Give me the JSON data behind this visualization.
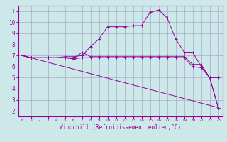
{
  "xlabel": "Windchill (Refroidissement éolien,°C)",
  "background_color": "#cce8e8",
  "grid_color": "#aaaacc",
  "line_color": "#990099",
  "x_ticks": [
    0,
    1,
    2,
    3,
    4,
    5,
    6,
    7,
    8,
    9,
    10,
    11,
    12,
    13,
    14,
    15,
    16,
    17,
    18,
    19,
    20,
    21,
    22,
    23
  ],
  "y_ticks": [
    2,
    3,
    4,
    5,
    6,
    7,
    8,
    9,
    10,
    11
  ],
  "ylim": [
    1.5,
    11.5
  ],
  "xlim": [
    -0.5,
    23.5
  ],
  "series": [
    {
      "x": [
        0,
        1,
        2,
        3,
        4,
        5,
        6,
        7,
        8,
        9,
        10,
        11,
        12,
        13,
        14,
        15,
        16,
        17,
        18,
        19,
        20,
        21,
        22,
        23
      ],
      "y": [
        7.0,
        6.8,
        6.8,
        6.8,
        6.8,
        6.8,
        6.7,
        7.3,
        6.9,
        6.9,
        6.9,
        6.9,
        6.9,
        6.9,
        6.9,
        6.9,
        6.9,
        6.9,
        6.9,
        6.9,
        6.2,
        6.2,
        5.0,
        5.0
      ],
      "marker": "+"
    },
    {
      "x": [
        0,
        1,
        2,
        3,
        4,
        5,
        6,
        7,
        8,
        9,
        10,
        11,
        12,
        13,
        14,
        15,
        16,
        17,
        18,
        19,
        20,
        21,
        22,
        23
      ],
      "y": [
        7.0,
        6.8,
        6.8,
        6.8,
        6.8,
        6.9,
        6.9,
        7.0,
        7.8,
        8.5,
        9.6,
        9.6,
        9.6,
        9.7,
        9.7,
        10.9,
        11.1,
        10.4,
        8.5,
        7.3,
        7.3,
        6.0,
        5.0,
        2.3
      ],
      "marker": "+"
    },
    {
      "x": [
        0,
        1,
        2,
        3,
        4,
        5,
        6,
        7,
        8,
        9,
        10,
        11,
        12,
        13,
        14,
        15,
        16,
        17,
        18,
        19,
        20,
        21,
        22,
        23
      ],
      "y": [
        7.0,
        6.8,
        6.8,
        6.8,
        6.8,
        6.8,
        6.7,
        6.8,
        6.8,
        6.8,
        6.8,
        6.8,
        6.8,
        6.8,
        6.8,
        6.8,
        6.8,
        6.8,
        6.8,
        6.8,
        6.0,
        5.9,
        5.0,
        2.3
      ],
      "marker": "+"
    },
    {
      "x": [
        0,
        23
      ],
      "y": [
        7.0,
        2.3
      ],
      "marker": null
    }
  ]
}
